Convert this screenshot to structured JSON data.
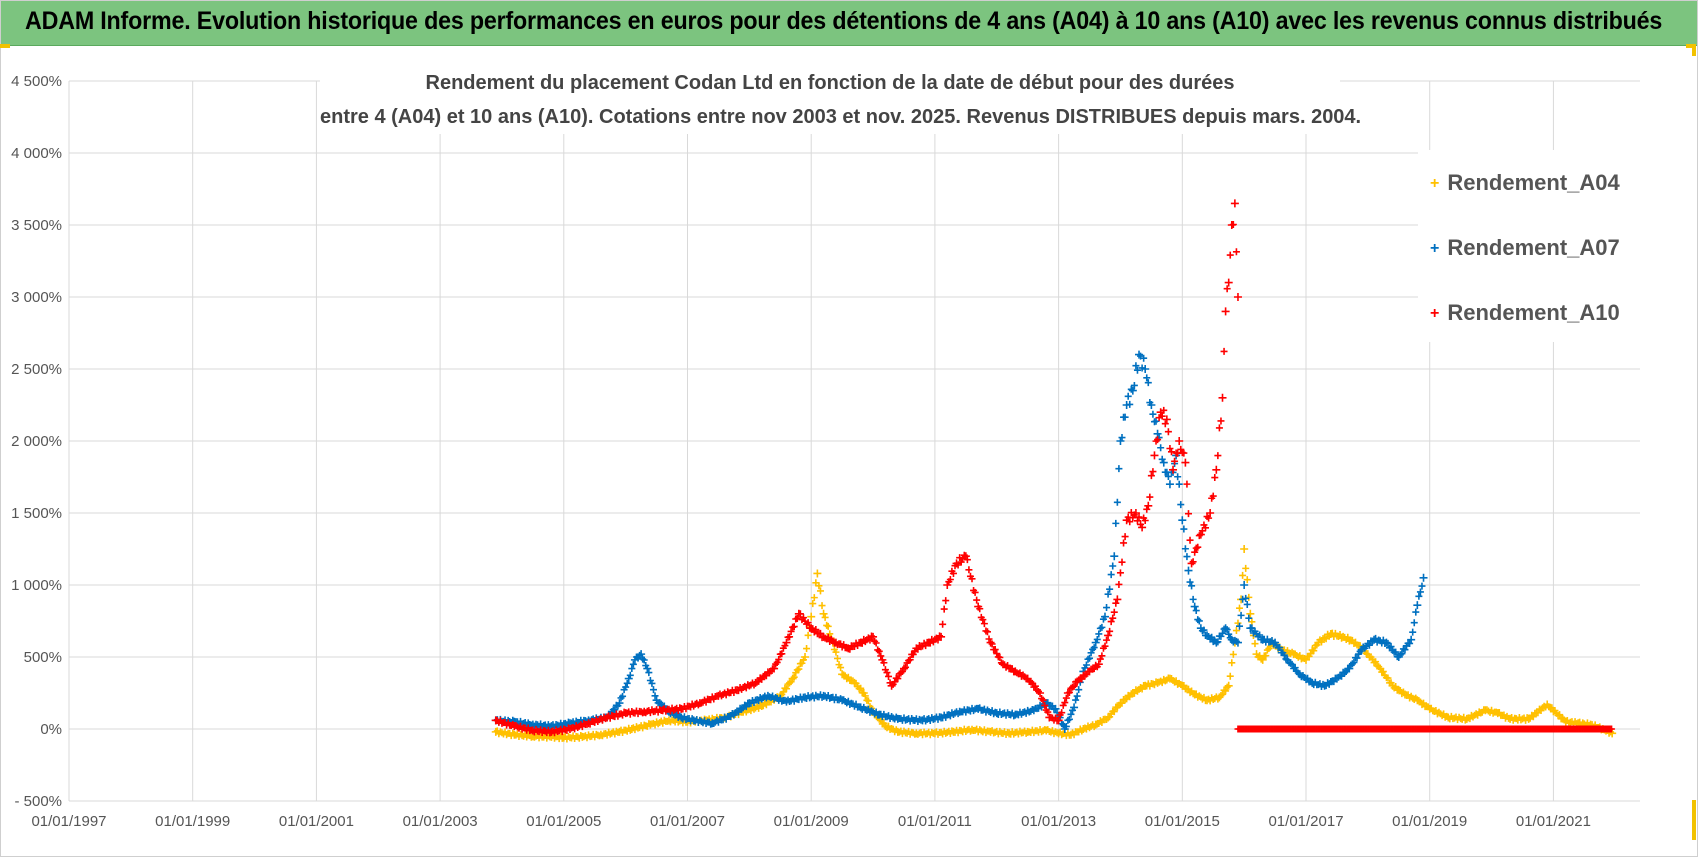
{
  "banner": {
    "title": "ADAM Informe. Evolution historique des performances en euros pour des détentions de 4 ans (A04) à 10 ans (A10) avec les revenus connus distribués"
  },
  "colors": {
    "banner_bg": "#7cc47f",
    "corner_accent": "#f2c200",
    "grid": "#d9d9d9",
    "A04": "#ffc000",
    "A07": "#0070c0",
    "A10": "#ff0000"
  },
  "chart_data": {
    "type": "scatter",
    "marker": "plus",
    "title_lines": [
      "Rendement du placement Codan Ltd en fonction de la date de début pour des durées",
      "entre 4 (A04) et 10 ans (A10). Cotations entre nov 2003 et nov. 2025. Revenus DISTRIBUES depuis mars. 2004."
    ],
    "xlim": [
      1997.0,
      2022.4
    ],
    "ylim": [
      -500,
      4500
    ],
    "y_ticks": [
      -500,
      0,
      500,
      1000,
      1500,
      2000,
      2500,
      3000,
      3500,
      4000,
      4500
    ],
    "y_tick_labels": [
      "- 500%",
      "0%",
      "500%",
      "1 000%",
      "1 500%",
      "2 000%",
      "2 500%",
      "3 000%",
      "3 500%",
      "4 000%",
      "4 500%"
    ],
    "x_ticks": [
      1997,
      1999,
      2001,
      2003,
      2005,
      2007,
      2009,
      2011,
      2013,
      2015,
      2017,
      2019,
      2021
    ],
    "x_tick_labels": [
      "01/01/1997",
      "01/01/1999",
      "01/01/2001",
      "01/01/2003",
      "01/01/2005",
      "01/01/2007",
      "01/01/2009",
      "01/01/2011",
      "01/01/2013",
      "01/01/2015",
      "01/01/2017",
      "01/01/2019",
      "01/01/2021"
    ],
    "grid": true,
    "legend_position": "top-right",
    "series": [
      {
        "name": "Rendement_A04",
        "color": "#ffc000",
        "x": [
          2003.9,
          2004.2,
          2004.5,
          2004.8,
          2005.0,
          2005.3,
          2005.6,
          2005.9,
          2006.1,
          2006.4,
          2006.7,
          2007.0,
          2007.3,
          2007.6,
          2007.9,
          2008.2,
          2008.5,
          2008.7,
          2008.9,
          2009.0,
          2009.1,
          2009.2,
          2009.35,
          2009.5,
          2009.7,
          2009.85,
          2010.0,
          2010.2,
          2010.4,
          2010.7,
          2011.0,
          2011.3,
          2011.6,
          2011.9,
          2012.2,
          2012.5,
          2012.8,
          2013.0,
          2013.2,
          2013.4,
          2013.6,
          2013.8,
          2014.0,
          2014.2,
          2014.4,
          2014.6,
          2014.8,
          2015.0,
          2015.2,
          2015.4,
          2015.6,
          2015.75,
          2015.85,
          2015.95,
          2016.0,
          2016.1,
          2016.2,
          2016.3,
          2016.45,
          2016.6,
          2016.8,
          2017.0,
          2017.2,
          2017.4,
          2017.6,
          2017.8,
          2018.0,
          2018.2,
          2018.4,
          2018.6,
          2018.8,
          2019.0,
          2019.3,
          2019.6,
          2019.9,
          2020.1,
          2020.3,
          2020.6,
          2020.9,
          2021.2,
          2021.4,
          2021.6,
          2021.8,
          2021.95
        ],
        "y": [
          -20,
          -40,
          -50,
          -55,
          -60,
          -55,
          -40,
          -20,
          0,
          30,
          60,
          50,
          60,
          80,
          120,
          160,
          230,
          350,
          500,
          780,
          1080,
          800,
          600,
          380,
          320,
          250,
          120,
          20,
          -20,
          -30,
          -30,
          -20,
          -5,
          -20,
          -30,
          -20,
          -10,
          -30,
          -40,
          0,
          30,
          80,
          180,
          250,
          300,
          320,
          350,
          300,
          240,
          200,
          220,
          300,
          600,
          900,
          1250,
          800,
          520,
          480,
          600,
          550,
          520,
          480,
          600,
          660,
          640,
          600,
          520,
          420,
          300,
          240,
          200,
          140,
          80,
          70,
          130,
          110,
          70,
          70,
          170,
          50,
          40,
          30,
          0,
          -30
        ],
        "y_extra": []
      },
      {
        "name": "Rendement_A07",
        "color": "#0070c0",
        "x": [
          2003.9,
          2004.2,
          2004.5,
          2004.8,
          2005.1,
          2005.4,
          2005.7,
          2005.9,
          2006.05,
          2006.15,
          2006.25,
          2006.35,
          2006.5,
          2006.7,
          2006.9,
          2007.1,
          2007.4,
          2007.7,
          2008.0,
          2008.3,
          2008.6,
          2008.9,
          2009.2,
          2009.5,
          2009.8,
          2010.1,
          2010.4,
          2010.8,
          2011.1,
          2011.4,
          2011.7,
          2012.0,
          2012.3,
          2012.6,
          2012.8,
          2012.95,
          2013.1,
          2013.25,
          2013.4,
          2013.6,
          2013.75,
          2013.9,
          2014.0,
          2014.1,
          2014.2,
          2014.3,
          2014.4,
          2014.5,
          2014.6,
          2014.7,
          2014.8,
          2014.9,
          2015.0,
          2015.1,
          2015.2,
          2015.3,
          2015.4,
          2015.55,
          2015.7,
          2015.8,
          2015.9,
          2016.0,
          2016.1,
          2016.3,
          2016.5,
          2016.7,
          2016.9,
          2017.1,
          2017.3,
          2017.5,
          2017.7,
          2017.9,
          2018.1,
          2018.3,
          2018.5,
          2018.7,
          2018.8,
          2018.9
        ],
        "y": [
          60,
          50,
          30,
          20,
          40,
          60,
          80,
          180,
          350,
          480,
          520,
          420,
          200,
          120,
          80,
          60,
          40,
          90,
          180,
          230,
          190,
          220,
          230,
          200,
          150,
          100,
          70,
          60,
          80,
          120,
          140,
          110,
          100,
          130,
          180,
          140,
          0,
          150,
          400,
          600,
          780,
          1200,
          2000,
          2250,
          2350,
          2600,
          2500,
          2250,
          2050,
          1850,
          1700,
          1900,
          1450,
          1100,
          850,
          700,
          650,
          600,
          700,
          620,
          600,
          1000,
          700,
          620,
          600,
          480,
          380,
          320,
          300,
          350,
          420,
          550,
          620,
          600,
          500,
          620,
          860,
          1050
        ],
        "y_extra": []
      },
      {
        "name": "Rendement_A10",
        "color": "#ff0000",
        "x": [
          2003.9,
          2004.2,
          2004.5,
          2004.8,
          2005.1,
          2005.4,
          2005.7,
          2006.0,
          2006.3,
          2006.6,
          2006.9,
          2007.2,
          2007.5,
          2007.8,
          2008.1,
          2008.4,
          2008.6,
          2008.8,
          2009.0,
          2009.2,
          2009.4,
          2009.6,
          2009.8,
          2010.0,
          2010.15,
          2010.3,
          2010.5,
          2010.7,
          2010.9,
          2011.1,
          2011.2,
          2011.35,
          2011.5,
          2011.7,
          2011.9,
          2012.1,
          2012.3,
          2012.5,
          2012.7,
          2012.85,
          2013.0,
          2013.15,
          2013.3,
          2013.5,
          2013.65,
          2013.8,
          2013.95,
          2014.1,
          2014.25,
          2014.35,
          2014.45,
          2014.55,
          2014.65,
          2014.75,
          2014.85,
          2014.95,
          2015.05,
          2015.15,
          2015.3,
          2015.45,
          2015.55,
          2015.65,
          2015.7,
          2015.75,
          2015.8,
          2015.85,
          2015.9
        ],
        "y": [
          60,
          20,
          -10,
          -20,
          0,
          40,
          80,
          110,
          120,
          130,
          140,
          180,
          230,
          270,
          320,
          420,
          600,
          800,
          700,
          640,
          600,
          560,
          600,
          640,
          480,
          300,
          420,
          560,
          600,
          640,
          1000,
          1150,
          1200,
          850,
          600,
          450,
          400,
          350,
          250,
          80,
          60,
          250,
          330,
          400,
          450,
          650,
          900,
          1450,
          1500,
          1400,
          1550,
          1900,
          2200,
          2150,
          1800,
          2000,
          1850,
          1150,
          1350,
          1500,
          1800,
          2300,
          2900,
          3100,
          3500,
          3650,
          3000
        ],
        "y_extra": [
          {
            "from": 2015.9,
            "to": 2021.95,
            "y": 0
          }
        ]
      }
    ]
  }
}
